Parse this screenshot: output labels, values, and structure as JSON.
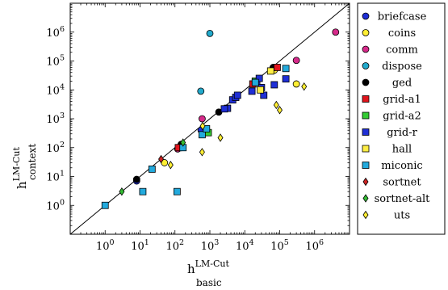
{
  "chart_data": {
    "type": "scatter",
    "xscale": "log",
    "yscale": "log",
    "xlim": [
      0.1,
      10000000
    ],
    "ylim": [
      0.1,
      10000000
    ],
    "diagonal": "y = x",
    "legend_position": "right, outside plot",
    "x_ticks": [
      {
        "value": 1,
        "base": "10",
        "exp": "0"
      },
      {
        "value": 10,
        "base": "10",
        "exp": "1"
      },
      {
        "value": 100,
        "base": "10",
        "exp": "2"
      },
      {
        "value": 1000,
        "base": "10",
        "exp": "3"
      },
      {
        "value": 10000,
        "base": "10",
        "exp": "4"
      },
      {
        "value": 100000,
        "base": "10",
        "exp": "5"
      },
      {
        "value": 1000000,
        "base": "10",
        "exp": "6"
      }
    ],
    "y_ticks": [
      {
        "value": 1,
        "base": "10",
        "exp": "0"
      },
      {
        "value": 10,
        "base": "10",
        "exp": "1"
      },
      {
        "value": 100,
        "base": "10",
        "exp": "2"
      },
      {
        "value": 1000,
        "base": "10",
        "exp": "3"
      },
      {
        "value": 10000,
        "base": "10",
        "exp": "4"
      },
      {
        "value": 100000,
        "base": "10",
        "exp": "5"
      },
      {
        "value": 1000000,
        "base": "10",
        "exp": "6"
      }
    ],
    "xlabel": {
      "main": "h",
      "sup": "LM-Cut",
      "sub": "basic"
    },
    "ylabel": {
      "main": "h",
      "sup": "LM-Cut",
      "sub": "context"
    },
    "series": [
      {
        "name": "briefcase",
        "marker": "circle",
        "color": "#1f2fd6",
        "points": [
          [
            8,
            7
          ],
          [
            560,
            400
          ]
        ]
      },
      {
        "name": "coins",
        "marker": "circle",
        "color": "#ffee33",
        "points": [
          [
            50,
            30
          ],
          [
            70000,
            48000
          ],
          [
            300000,
            16000
          ]
        ]
      },
      {
        "name": "comm",
        "marker": "circle",
        "color": "#d62a8a",
        "points": [
          [
            4000000,
            1000000
          ],
          [
            300000,
            105000
          ],
          [
            600,
            1000
          ],
          [
            120,
            90
          ]
        ]
      },
      {
        "name": "dispose",
        "marker": "circle",
        "color": "#22aacc",
        "points": [
          [
            1000,
            900000
          ],
          [
            550,
            9000
          ],
          [
            70000,
            60000
          ]
        ]
      },
      {
        "name": "ged",
        "marker": "circle",
        "color": "#000000",
        "points": [
          [
            8,
            8
          ],
          [
            130,
            100
          ],
          [
            150,
            130
          ],
          [
            1800,
            1700
          ],
          [
            65000,
            60000
          ]
        ]
      },
      {
        "name": "grid-a1",
        "marker": "square",
        "color": "#e0141c",
        "points": [
          [
            125,
            100
          ],
          [
            17000,
            16000
          ],
          [
            85000,
            60000
          ]
        ]
      },
      {
        "name": "grid-a2",
        "marker": "square",
        "color": "#33cc33",
        "points": [
          [
            900,
            330
          ],
          [
            20000,
            20000
          ]
        ]
      },
      {
        "name": "grid-r",
        "marker": "square",
        "color": "#1f2fd6",
        "points": [
          [
            3200,
            2300
          ],
          [
            4500,
            4500
          ],
          [
            5500,
            5500
          ],
          [
            6200,
            6500
          ],
          [
            16000,
            9000
          ],
          [
            22000,
            18000
          ],
          [
            26000,
            25000
          ],
          [
            35000,
            6500
          ],
          [
            70000,
            15000
          ],
          [
            150000,
            24000
          ],
          [
            2600,
            2200
          ],
          [
            30000,
            12000
          ]
        ]
      },
      {
        "name": "hall",
        "marker": "square",
        "color": "#ffee44",
        "points": [
          [
            28000,
            10000
          ],
          [
            55000,
            45000
          ]
        ]
      },
      {
        "name": "miconic",
        "marker": "square",
        "color": "#22aadd",
        "points": [
          [
            1,
            1
          ],
          [
            12,
            3
          ],
          [
            22,
            18
          ],
          [
            115,
            3
          ],
          [
            170,
            100
          ],
          [
            600,
            280
          ],
          [
            800,
            450
          ],
          [
            20000,
            18000
          ],
          [
            150000,
            55000
          ]
        ]
      },
      {
        "name": "sortnet",
        "marker": "diamond",
        "color": "#cc2222",
        "points": [
          [
            40,
            40
          ]
        ]
      },
      {
        "name": "sortnet-alt",
        "marker": "diamond",
        "color": "#33bb33",
        "points": [
          [
            3,
            3
          ],
          [
            170,
            150
          ]
        ]
      },
      {
        "name": "uts",
        "marker": "diamond",
        "color": "#ffee33",
        "points": [
          [
            75,
            25
          ],
          [
            600,
            70
          ],
          [
            620,
            560
          ],
          [
            2000,
            220
          ],
          [
            80000,
            3000
          ],
          [
            100000,
            2000
          ],
          [
            500000,
            13000
          ]
        ]
      }
    ]
  }
}
